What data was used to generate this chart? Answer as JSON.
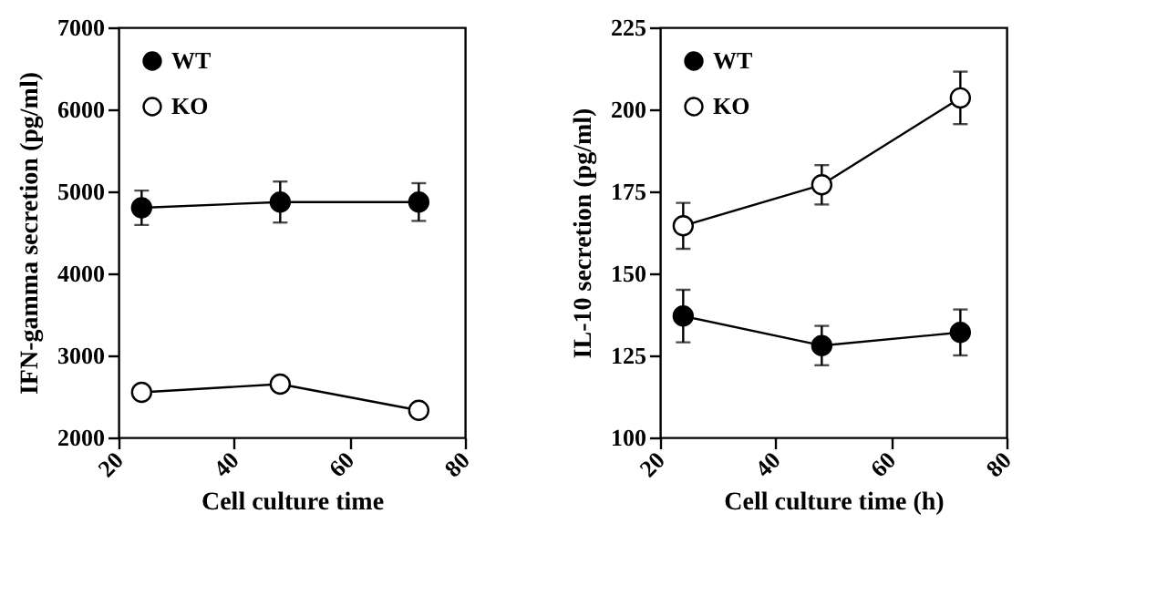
{
  "chart_data": [
    {
      "type": "line",
      "xlabel": "Cell culture time",
      "ylabel": "IFN-gamma secretion (pg/ml)",
      "x": [
        24,
        48,
        72
      ],
      "xlim": [
        20,
        80
      ],
      "xticks": [
        20,
        40,
        60,
        80
      ],
      "ylim": [
        2000,
        7000
      ],
      "yticks": [
        2000,
        3000,
        4000,
        5000,
        6000,
        7000
      ],
      "marker": "circle",
      "legend": "top left",
      "grid": false,
      "series": [
        {
          "name": "WT",
          "color": "#000000",
          "values": [
            4800,
            4870,
            4870
          ],
          "errors": [
            210,
            250,
            230
          ]
        },
        {
          "name": "KO",
          "color": "#000000",
          "values": [
            2550,
            2650,
            2330
          ]
        }
      ]
    },
    {
      "type": "line",
      "xlabel": "Cell culture time (h)",
      "ylabel": "IL-10 secretion (pg/ml)",
      "x": [
        24,
        48,
        72
      ],
      "xlim": [
        20,
        80
      ],
      "xticks": [
        20,
        40,
        60,
        80
      ],
      "ylim": [
        100,
        225
      ],
      "yticks": [
        100,
        125,
        150,
        175,
        200,
        225
      ],
      "marker": "circle",
      "legend": "top left",
      "grid": false,
      "series": [
        {
          "name": "WT",
          "color": "#000000",
          "values": [
            137,
            128,
            132
          ],
          "errors": [
            8,
            6,
            7
          ]
        },
        {
          "name": "KO",
          "color": "#000000",
          "values": [
            164.5,
            177,
            203.5
          ],
          "errors": [
            7,
            6,
            8
          ]
        }
      ]
    }
  ]
}
